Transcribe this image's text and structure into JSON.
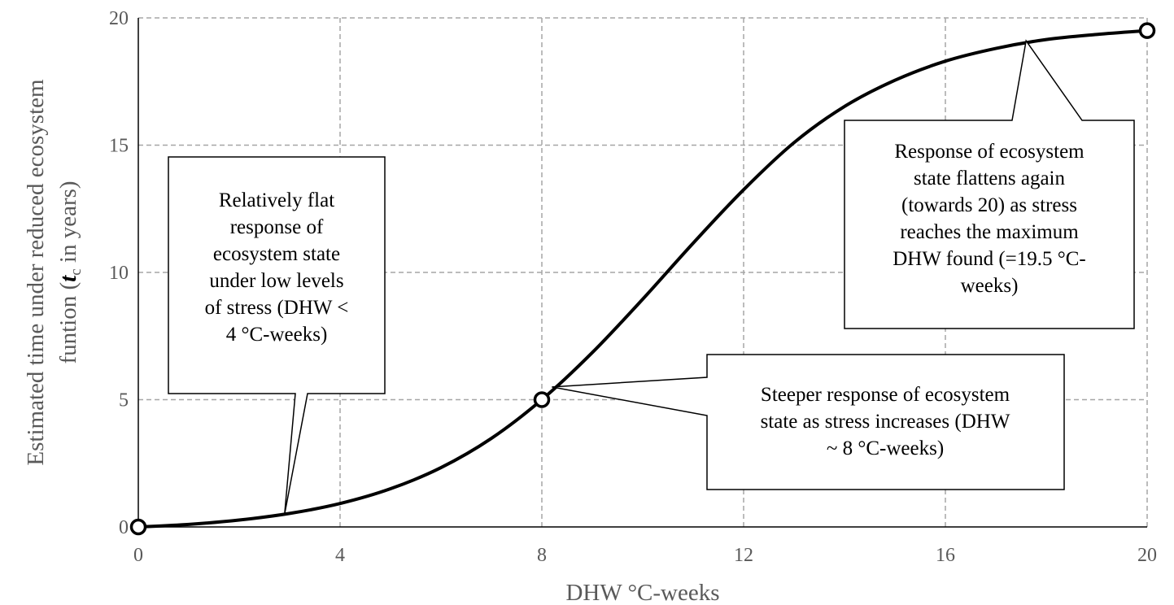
{
  "chart_data": {
    "type": "line",
    "xlabel": "DHW °C-weeks",
    "ylabel": {
      "line1": "Estimated time under reduced ecosystem",
      "line2_pre": "funtion (",
      "line2_var": "t",
      "line2_sub": "c",
      "line2_post": " in years)"
    },
    "xlim": [
      0,
      20
    ],
    "ylim": [
      0,
      20
    ],
    "xticks": [
      0,
      4,
      8,
      12,
      16,
      20
    ],
    "yticks": [
      0,
      5,
      10,
      15,
      20
    ],
    "grid": true,
    "series": [
      {
        "x": [
          0,
          1,
          2,
          3,
          4,
          5,
          6,
          7,
          8,
          9,
          10,
          11,
          12,
          13,
          14,
          15,
          16,
          17,
          18,
          19,
          20
        ],
        "y": [
          0,
          0.1,
          0.27,
          0.53,
          0.92,
          1.5,
          2.33,
          3.48,
          5.0,
          6.85,
          8.95,
          11.15,
          13.25,
          15.1,
          16.52,
          17.55,
          18.3,
          18.8,
          19.15,
          19.35,
          19.5
        ]
      }
    ],
    "markers": [
      {
        "x": 0,
        "y": 0
      },
      {
        "x": 8,
        "y": 5
      },
      {
        "x": 20,
        "y": 19.5
      }
    ],
    "annotations": [
      {
        "lines": [
          "Relatively flat",
          "response of",
          "ecosystem state",
          "under low levels",
          "of stress (DHW <",
          "4 °C-weeks)"
        ],
        "target": {
          "x": 2.9,
          "y": 0.5
        }
      },
      {
        "lines": [
          "Steeper response of ecosystem",
          "state as stress increases (DHW",
          "~ 8 °C-weeks)"
        ],
        "target": {
          "x": 8.2,
          "y": 5.5
        }
      },
      {
        "lines": [
          "Response of ecosystem",
          "state flattens again",
          "(towards 20) as stress",
          "reaches the maximum",
          "DHW found (=19.5 °C-",
          "weeks)"
        ],
        "target": {
          "x": 17.6,
          "y": 19.1
        }
      }
    ]
  }
}
